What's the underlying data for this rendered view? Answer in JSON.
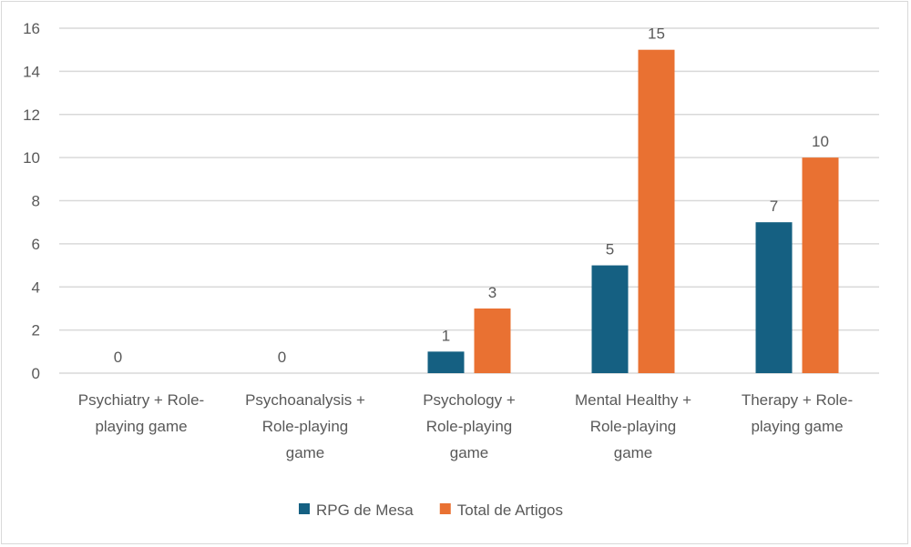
{
  "chart_data": {
    "type": "bar",
    "title": "",
    "xlabel": "",
    "ylabel": "",
    "ylim": [
      0,
      16
    ],
    "ytick_step": 2,
    "yticks": [
      "0",
      "2",
      "4",
      "6",
      "8",
      "10",
      "12",
      "14",
      "16"
    ],
    "grid": true,
    "legend_position": "bottom",
    "categories": [
      [
        "Psychiatry + Role-",
        "playing game"
      ],
      [
        "Psychoanalysis  +",
        "Role-playing",
        "game"
      ],
      [
        "Psychology +",
        "Role-playing",
        "game"
      ],
      [
        "Mental Healthy +",
        "Role-playing",
        "game"
      ],
      [
        "Therapy + Role-",
        "playing game"
      ]
    ],
    "series": [
      {
        "name": "RPG de Mesa",
        "color": "#156082",
        "values": [
          0,
          0,
          1,
          5,
          7
        ]
      },
      {
        "name": "Total de Artigos",
        "color": "#E97132",
        "values": [
          null,
          null,
          3,
          15,
          10
        ]
      }
    ]
  }
}
